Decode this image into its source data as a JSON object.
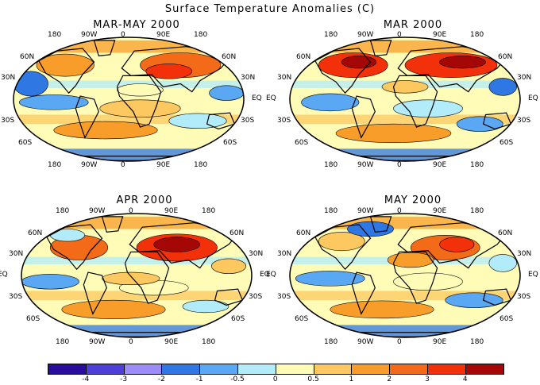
{
  "title": "Surface Temperature Anomalies (C)",
  "panels": [
    {
      "title": "MAR-MAY 2000",
      "anomaly": "mixed"
    },
    {
      "title": "MAR 2000",
      "anomaly": "warm-north"
    },
    {
      "title": "APR 2000",
      "anomaly": "warm-asia"
    },
    {
      "title": "MAY 2000",
      "anomaly": "mixed-cool"
    }
  ],
  "lon_labels": [
    "180",
    "90W",
    "0",
    "90E",
    "180"
  ],
  "lat_labels_left": [
    "60N",
    "30N",
    "EQ",
    "30S",
    "60S"
  ],
  "lat_labels_right": [
    "60N",
    "30N",
    "EQ",
    "30S",
    "60S"
  ],
  "colorbar": {
    "colors": [
      "#2a0c9e",
      "#4d3fd8",
      "#9b8cf7",
      "#2f77e3",
      "#5aa7f3",
      "#b2ecfa",
      "#fefcb6",
      "#fcc85f",
      "#f99d2a",
      "#f36a19",
      "#f2310b",
      "#a50707"
    ],
    "labels": [
      "-4",
      "-3",
      "-2",
      "-1",
      "-0.5",
      "0",
      "0.5",
      "1",
      "2",
      "3",
      "4"
    ]
  }
}
